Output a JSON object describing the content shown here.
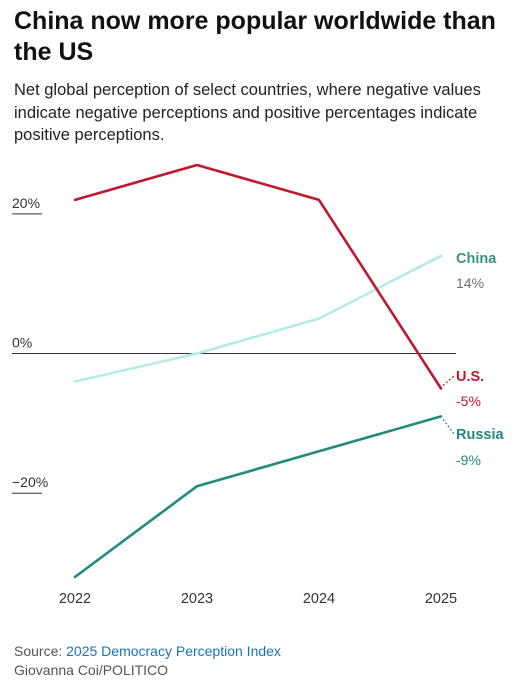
{
  "header": {
    "title": "China now more popular worldwide than the US",
    "subtitle": "Net global perception of select countries, where negative values indicate negative perceptions and positive percentages indicate positive perceptions."
  },
  "footer": {
    "source_prefix": "Source: ",
    "source_link": "2025 Democracy Perception Index",
    "credit": "Giovanna Coi/POLITICO"
  },
  "chart_data": {
    "type": "line",
    "x": [
      2022,
      2023,
      2024,
      2025
    ],
    "xticks": [
      "2022",
      "2023",
      "2024",
      "2025"
    ],
    "ylim": [
      -32,
      27
    ],
    "yticks": [
      {
        "value": 20,
        "label": "20%"
      },
      {
        "value": 0,
        "label": "0%"
      },
      {
        "value": -20,
        "label": "−20%"
      }
    ],
    "grid": false,
    "legend": "end-labels",
    "series": [
      {
        "name": "China",
        "end_label": "14%",
        "values": [
          -4,
          0,
          5,
          14
        ],
        "color": "#b5ebe6",
        "label_color": "#3a9187",
        "value_color": "#6e6e6e",
        "bold_label": true
      },
      {
        "name": "U.S.",
        "end_label": "-5%",
        "values": [
          22,
          27,
          22,
          -5
        ],
        "color": "#c0182f",
        "label_color": "#c0182f",
        "value_color": "#c0182f",
        "bold_label": true
      },
      {
        "name": "Russia",
        "end_label": "-9%",
        "values": [
          -32,
          -19,
          -14,
          -9
        ],
        "color": "#238a7d",
        "label_color": "#238a7d",
        "value_color": "#238a7d",
        "bold_label": true
      }
    ]
  }
}
